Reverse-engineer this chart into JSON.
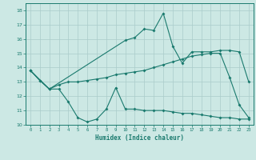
{
  "bg_color": "#cce8e4",
  "grid_color": "#aaccca",
  "line_color": "#1a7a6e",
  "xlabel": "Humidex (Indice chaleur)",
  "xlim": [
    -0.5,
    23.5
  ],
  "ylim": [
    10,
    18.5
  ],
  "xticks": [
    0,
    1,
    2,
    3,
    4,
    5,
    6,
    7,
    8,
    9,
    10,
    11,
    12,
    13,
    14,
    15,
    16,
    17,
    18,
    19,
    20,
    21,
    22,
    23
  ],
  "yticks": [
    10,
    11,
    12,
    13,
    14,
    15,
    16,
    17,
    18
  ],
  "line1_x": [
    0,
    1,
    2,
    3,
    4,
    5,
    6,
    7,
    8,
    9,
    10,
    11,
    12,
    13,
    14,
    15,
    16,
    17,
    18,
    19,
    20,
    21,
    22,
    23
  ],
  "line1_y": [
    13.8,
    13.1,
    12.5,
    12.5,
    11.6,
    10.5,
    10.2,
    10.4,
    11.1,
    12.6,
    11.1,
    11.1,
    11.0,
    11.0,
    11.0,
    10.9,
    10.8,
    10.8,
    10.7,
    10.6,
    10.5,
    10.5,
    10.4,
    10.4
  ],
  "line2_x": [
    0,
    1,
    2,
    3,
    4,
    5,
    6,
    7,
    8,
    9,
    10,
    11,
    12,
    13,
    14,
    15,
    16,
    17,
    18,
    19,
    20,
    21,
    22,
    23
  ],
  "line2_y": [
    13.8,
    13.1,
    12.5,
    12.8,
    13.0,
    13.0,
    13.1,
    13.2,
    13.3,
    13.5,
    13.6,
    13.7,
    13.8,
    14.0,
    14.2,
    14.4,
    14.6,
    14.8,
    14.9,
    15.0,
    15.0,
    13.3,
    11.4,
    10.5
  ],
  "line3_x": [
    0,
    2,
    10,
    11,
    12,
    13,
    14,
    15,
    16,
    17,
    18,
    19,
    20,
    21,
    22,
    23
  ],
  "line3_y": [
    13.8,
    12.5,
    15.9,
    16.1,
    16.7,
    16.6,
    17.8,
    15.5,
    14.3,
    15.1,
    15.1,
    15.1,
    15.2,
    15.2,
    15.1,
    13.0
  ]
}
